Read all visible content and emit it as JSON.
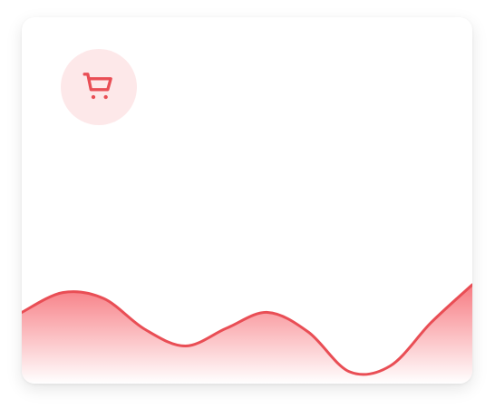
{
  "widget": {
    "icon": "cart-icon",
    "accent_color": "#e94e55",
    "badge_color": "#fde8e9"
  },
  "chart_data": {
    "type": "area",
    "x": [
      0,
      1,
      2,
      3,
      4,
      5,
      6,
      7,
      8,
      9,
      10,
      11,
      12
    ],
    "values": [
      {
        "x": 0,
        "y": 0.72
      },
      {
        "x": 1,
        "y": 0.92
      },
      {
        "x": 2,
        "y": 0.86
      },
      {
        "x": 3,
        "y": 0.55
      },
      {
        "x": 4,
        "y": 0.38
      },
      {
        "x": 5,
        "y": 0.56
      },
      {
        "x": 6,
        "y": 0.72
      },
      {
        "x": 7,
        "y": 0.52
      },
      {
        "x": 8,
        "y": 0.12
      },
      {
        "x": 9,
        "y": 0.18
      },
      {
        "x": 10,
        "y": 0.62
      },
      {
        "x": 11,
        "y": 1.0
      }
    ],
    "ylim": [
      0,
      1.1
    ],
    "grid": false,
    "legend": "none",
    "line_color": "#e94e55",
    "fill_top_color": "#f77b82",
    "fill_bottom_color": "#ffffff"
  }
}
